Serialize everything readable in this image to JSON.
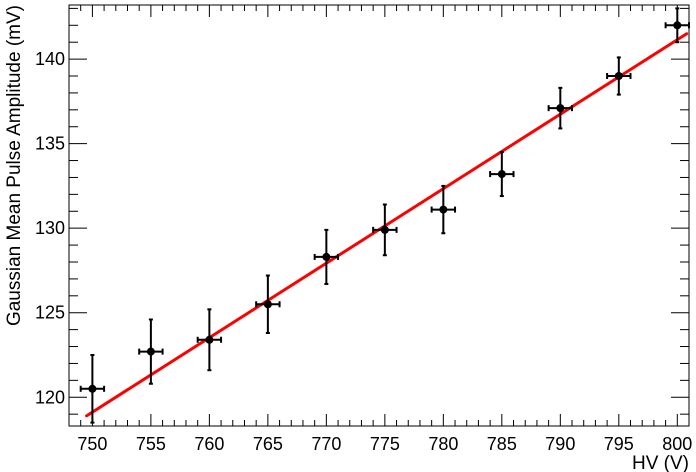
{
  "chart_data": {
    "type": "scatter",
    "title": "",
    "xlabel": "HV (V)",
    "ylabel": "Gaussian Mean Pulse Amplitude (mV)",
    "xlim": [
      748,
      801
    ],
    "ylim": [
      118.3,
      143.2
    ],
    "x_ticks": [
      750,
      755,
      760,
      765,
      770,
      775,
      780,
      785,
      790,
      795,
      800
    ],
    "y_ticks": [
      120,
      125,
      130,
      135,
      140
    ],
    "grid": false,
    "legend": "none",
    "series": [
      {
        "type": "scatter-errorbars",
        "color": "#000000",
        "x": [
          750,
          755,
          760,
          765,
          770,
          775,
          780,
          785,
          790,
          795,
          800
        ],
        "y": [
          120.5,
          122.7,
          123.4,
          125.5,
          128.3,
          129.9,
          131.1,
          133.2,
          137.1,
          139.0,
          142.0
        ],
        "x_err": [
          1,
          1,
          1,
          1,
          1,
          1,
          1,
          1,
          1,
          1,
          1
        ],
        "y_err": [
          2.0,
          1.9,
          1.8,
          1.7,
          1.6,
          1.5,
          1.4,
          1.3,
          1.2,
          1.1,
          1.0
        ]
      },
      {
        "type": "fit-line",
        "color": "#ff0000",
        "x": [
          749.5,
          800.8
        ],
        "y": [
          118.9,
          141.5
        ]
      }
    ]
  }
}
